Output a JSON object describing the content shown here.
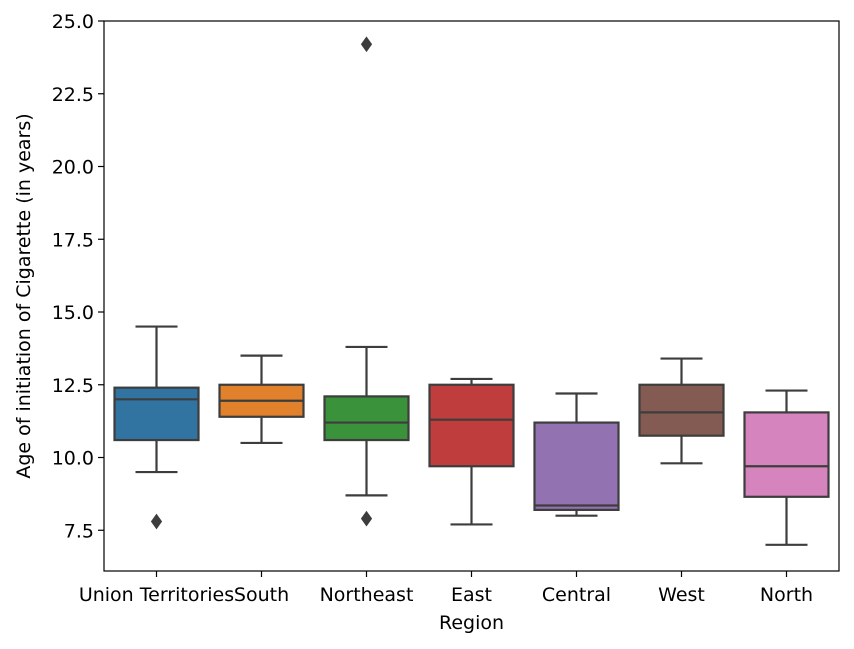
{
  "chart_data": {
    "type": "box",
    "xlabel": "Region",
    "ylabel": "Age of initiation of Cigarette (in years)",
    "ylim": [
      6.1,
      25.0
    ],
    "yticks": [
      "7.5",
      "10.0",
      "12.5",
      "15.0",
      "17.5",
      "20.0",
      "22.5",
      "25.0"
    ],
    "categories": [
      "Union Territories",
      "South",
      "Northeast",
      "East",
      "Central",
      "West",
      "North"
    ],
    "colors": [
      "#3274a1",
      "#e1812c",
      "#3a923a",
      "#c03d3e",
      "#9372b2",
      "#845b53",
      "#d684bd"
    ],
    "boxes": [
      {
        "category": "Union Territories",
        "whisker_low": 9.5,
        "q1": 10.6,
        "median": 12.0,
        "q3": 12.4,
        "whisker_high": 14.5,
        "outliers": [
          7.8
        ]
      },
      {
        "category": "South",
        "whisker_low": 10.5,
        "q1": 11.4,
        "median": 11.95,
        "q3": 12.5,
        "whisker_high": 13.5,
        "outliers": []
      },
      {
        "category": "Northeast",
        "whisker_low": 8.7,
        "q1": 10.6,
        "median": 11.2,
        "q3": 12.1,
        "whisker_high": 13.8,
        "outliers": [
          24.2,
          7.9
        ]
      },
      {
        "category": "East",
        "whisker_low": 7.7,
        "q1": 9.7,
        "median": 11.3,
        "q3": 12.5,
        "whisker_high": 12.7,
        "outliers": []
      },
      {
        "category": "Central",
        "whisker_low": 8.0,
        "q1": 8.2,
        "median": 8.35,
        "q3": 11.2,
        "whisker_high": 12.2,
        "outliers": []
      },
      {
        "category": "West",
        "whisker_low": 9.8,
        "q1": 10.75,
        "median": 11.55,
        "q3": 12.5,
        "whisker_high": 13.4,
        "outliers": []
      },
      {
        "category": "North",
        "whisker_low": 7.0,
        "q1": 8.65,
        "median": 9.7,
        "q3": 11.55,
        "whisker_high": 12.3,
        "outliers": []
      }
    ]
  }
}
